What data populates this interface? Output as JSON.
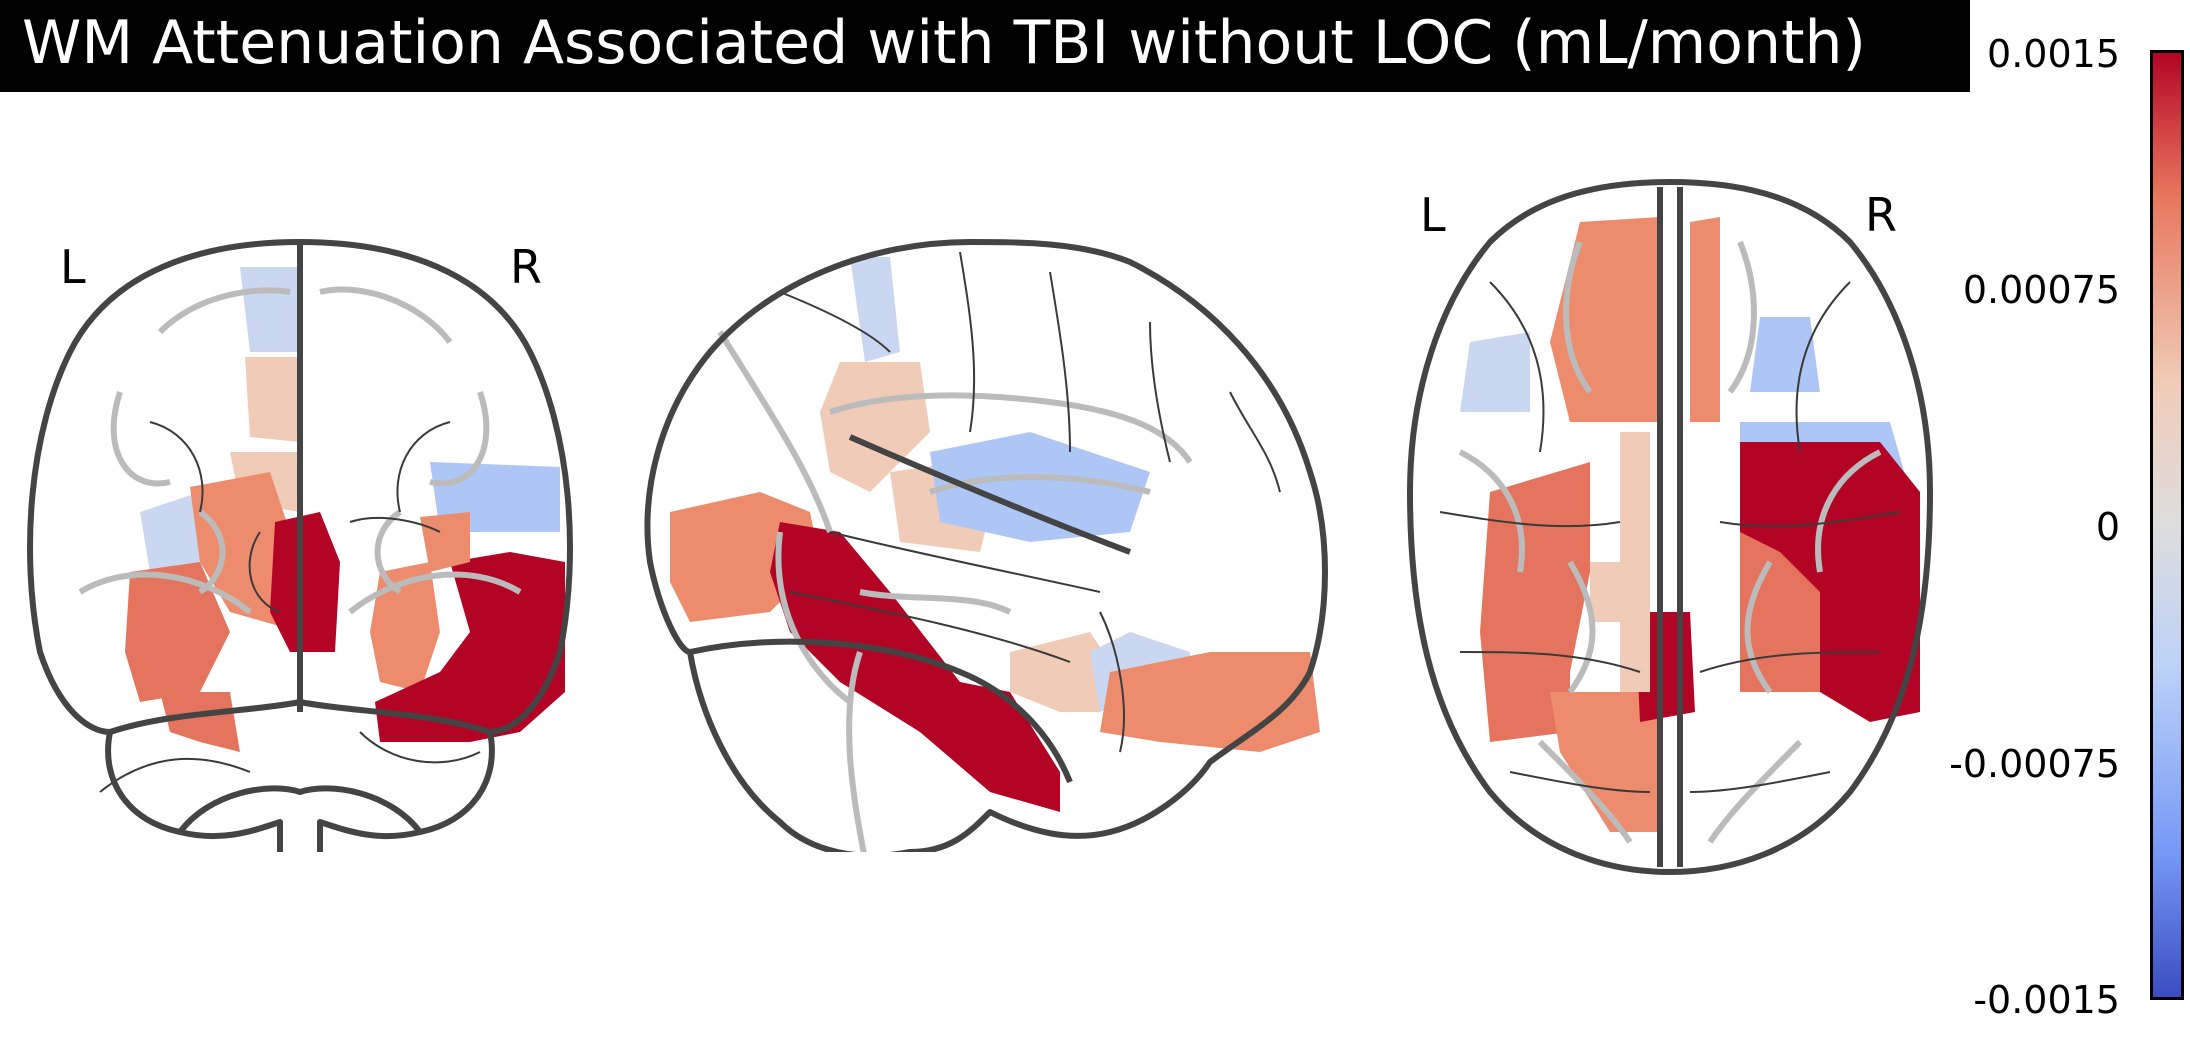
{
  "title": "WM Attenuation Associated with TBI without LOC (mL/month)",
  "views": {
    "coronal": {
      "left_label": "L",
      "right_label": "R"
    },
    "sagittal": {},
    "axial": {
      "left_label": "L",
      "right_label": "R"
    }
  },
  "colorbar": {
    "ticks": [
      "0.0015",
      "0.00075",
      "0",
      "-0.00075",
      "-0.0015"
    ],
    "range": [
      -0.0015,
      0.0015
    ],
    "colormap": "coolwarm",
    "colors": {
      "high": "#b40426",
      "mid_high": "#e8765c",
      "low_high": "#f0ccb8",
      "mid": "#dddddd",
      "low_low": "#bcd2f7",
      "mid_low": "#7597f6",
      "low": "#3b4cc0"
    }
  }
}
